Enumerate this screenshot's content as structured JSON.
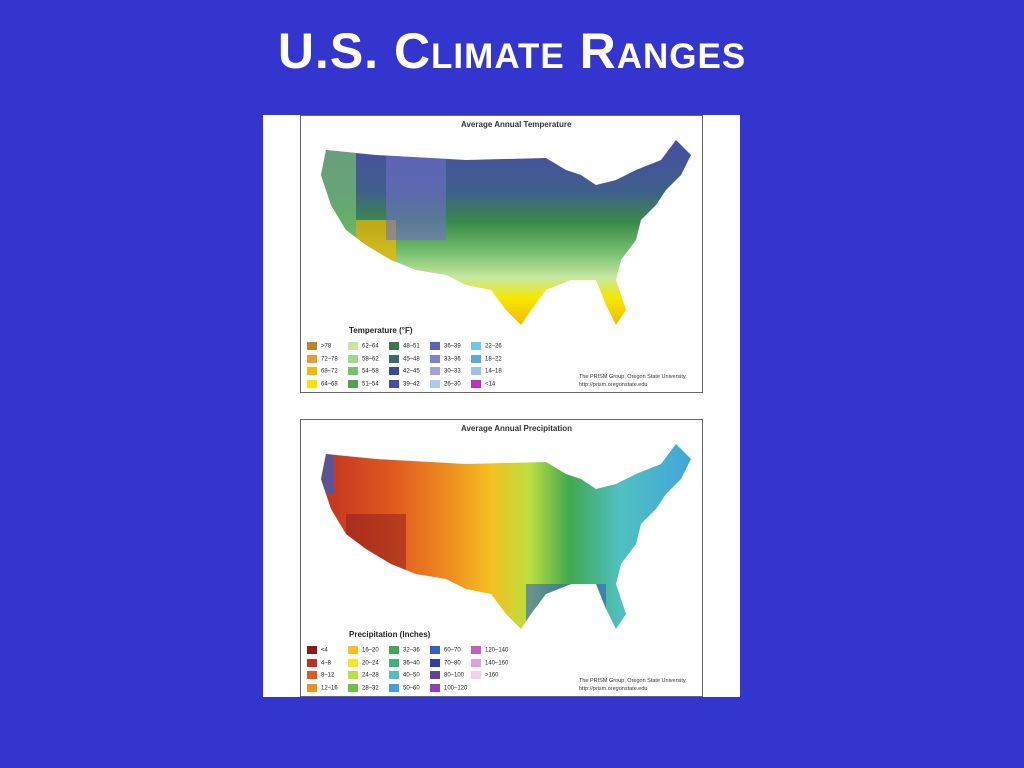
{
  "title": "U.S. Climate Ranges",
  "panels": [
    {
      "title": "Average Annual Temperature",
      "legend_title": "Temperature (°F)",
      "credit": "The PRISM Group, Oregon State University",
      "url": "http://prism.oregonstate.edu",
      "legend": [
        {
          "label": ">78",
          "color": "#b8862a"
        },
        {
          "label": "72–78",
          "color": "#e89a3a"
        },
        {
          "label": "68–72",
          "color": "#f5b800"
        },
        {
          "label": "64–68",
          "color": "#f5e800"
        },
        {
          "label": "62–64",
          "color": "#c8e8a0"
        },
        {
          "label": "58–62",
          "color": "#a0d890"
        },
        {
          "label": "54–58",
          "color": "#78c070"
        },
        {
          "label": "51–54",
          "color": "#50a050"
        },
        {
          "label": "48–51",
          "color": "#3a7a4a"
        },
        {
          "label": "45–48",
          "color": "#3a6a6a"
        },
        {
          "label": "42–45",
          "color": "#3a4a9a"
        },
        {
          "label": "39–42",
          "color": "#4a4aaa"
        },
        {
          "label": "36–39",
          "color": "#6060c0"
        },
        {
          "label": "33–36",
          "color": "#8080d0"
        },
        {
          "label": "30–33",
          "color": "#a0a0e0"
        },
        {
          "label": "26–30",
          "color": "#b0c8f0"
        },
        {
          "label": "22–26",
          "color": "#70c8e8"
        },
        {
          "label": "18–22",
          "color": "#60a8d8"
        },
        {
          "label": "14–18",
          "color": "#a0c0e8"
        },
        {
          "label": "<14",
          "color": "#c030c0"
        }
      ]
    },
    {
      "title": "Average Annual Precipitation",
      "legend_title": "Precipitation (Inches)",
      "credit": "The PRISM Group, Oregon State University",
      "url": "http://prism.oregonstate.edu",
      "legend": [
        {
          "label": "<4",
          "color": "#8b1a1a"
        },
        {
          "label": "4–8",
          "color": "#c03020"
        },
        {
          "label": "8–12",
          "color": "#e05a20"
        },
        {
          "label": "12–16",
          "color": "#f09020"
        },
        {
          "label": "16–20",
          "color": "#f5c020"
        },
        {
          "label": "20–24",
          "color": "#f5e820"
        },
        {
          "label": "24–28",
          "color": "#b8e040"
        },
        {
          "label": "28–32",
          "color": "#70c040"
        },
        {
          "label": "32–36",
          "color": "#40a850"
        },
        {
          "label": "36–40",
          "color": "#40b080"
        },
        {
          "label": "40–50",
          "color": "#50c0c0"
        },
        {
          "label": "50–60",
          "color": "#40a0e0"
        },
        {
          "label": "60–70",
          "color": "#3060c0"
        },
        {
          "label": "70–80",
          "color": "#3040a0"
        },
        {
          "label": "80–100",
          "color": "#6040a0"
        },
        {
          "label": "100–120",
          "color": "#9040b0"
        },
        {
          "label": "120–140",
          "color": "#c060c0"
        },
        {
          "label": "140–160",
          "color": "#e0a0e0"
        },
        {
          "label": ">160",
          "color": "#f0d0f0"
        }
      ]
    }
  ]
}
